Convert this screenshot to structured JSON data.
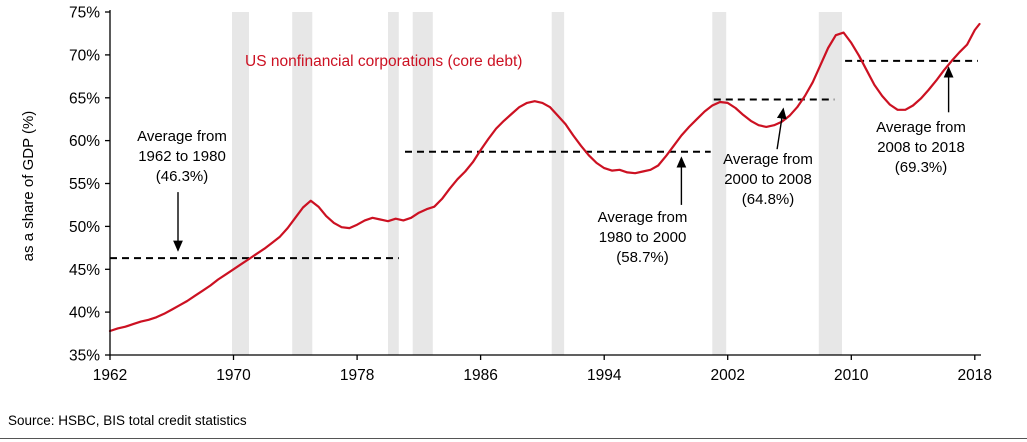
{
  "chart_data": {
    "type": "line",
    "title": "US nonfinancial corporations (core debt)",
    "xlabel": "",
    "ylabel": "as a share of GDP (%)",
    "ylim": [
      35,
      75
    ],
    "ytick_step": 5,
    "ytick_suffix": "%",
    "xlim": [
      1962,
      2018.4
    ],
    "xticks": [
      1962,
      1970,
      1978,
      1986,
      1994,
      2002,
      2010,
      2018
    ],
    "grid": false,
    "legend": "none",
    "line_color": "#cc1122",
    "band_color": "#e7e7e7",
    "series": [
      {
        "name": "US nonfinancial corporations (core debt)",
        "x": [
          1962,
          1962.5,
          1963,
          1963.5,
          1964,
          1964.5,
          1965,
          1965.5,
          1966,
          1966.5,
          1967,
          1967.5,
          1968,
          1968.5,
          1969,
          1969.5,
          1970,
          1970.5,
          1971,
          1971.5,
          1972,
          1972.5,
          1973,
          1973.5,
          1974,
          1974.5,
          1975,
          1975.5,
          1976,
          1976.5,
          1977,
          1977.5,
          1978,
          1978.5,
          1979,
          1979.5,
          1980,
          1980.5,
          1981,
          1981.5,
          1982,
          1982.5,
          1983,
          1983.5,
          1984,
          1984.5,
          1985,
          1985.5,
          1986,
          1986.5,
          1987,
          1987.5,
          1988,
          1988.5,
          1989,
          1989.5,
          1990,
          1990.5,
          1991,
          1991.5,
          1992,
          1992.5,
          1993,
          1993.5,
          1994,
          1994.5,
          1995,
          1995.5,
          1996,
          1996.5,
          1997,
          1997.5,
          1998,
          1998.5,
          1999,
          1999.5,
          2000,
          2000.5,
          2001,
          2001.5,
          2002,
          2002.5,
          2003,
          2003.5,
          2004,
          2004.5,
          2005,
          2005.5,
          2006,
          2006.5,
          2007,
          2007.5,
          2008,
          2008.5,
          2009,
          2009.5,
          2010,
          2010.5,
          2011,
          2011.5,
          2012,
          2012.5,
          2013,
          2013.5,
          2014,
          2014.5,
          2015,
          2015.5,
          2016,
          2016.5,
          2017,
          2017.5,
          2018,
          2018.3
        ],
        "values": [
          37.8,
          38.1,
          38.3,
          38.6,
          38.9,
          39.1,
          39.4,
          39.8,
          40.3,
          40.8,
          41.3,
          41.9,
          42.5,
          43.1,
          43.8,
          44.4,
          45.0,
          45.6,
          46.2,
          46.8,
          47.4,
          48.1,
          48.8,
          49.8,
          51.0,
          52.2,
          53.0,
          52.3,
          51.2,
          50.4,
          49.9,
          49.8,
          50.2,
          50.7,
          51.0,
          50.8,
          50.6,
          50.9,
          50.7,
          51.0,
          51.6,
          52.0,
          52.3,
          53.2,
          54.4,
          55.5,
          56.4,
          57.5,
          58.9,
          60.2,
          61.4,
          62.3,
          63.1,
          63.9,
          64.4,
          64.6,
          64.4,
          63.9,
          62.9,
          61.9,
          60.6,
          59.4,
          58.3,
          57.4,
          56.8,
          56.5,
          56.6,
          56.3,
          56.2,
          56.4,
          56.6,
          57.1,
          58.2,
          59.4,
          60.6,
          61.6,
          62.5,
          63.4,
          64.1,
          64.5,
          64.4,
          63.8,
          63.0,
          62.3,
          61.8,
          61.6,
          61.8,
          62.2,
          62.9,
          63.9,
          65.2,
          66.8,
          68.8,
          70.8,
          72.3,
          72.6,
          71.4,
          69.9,
          68.2,
          66.5,
          65.2,
          64.2,
          63.6,
          63.6,
          64.1,
          64.9,
          65.9,
          67.0,
          68.2,
          69.3,
          70.3,
          71.2,
          72.9,
          73.6
        ]
      }
    ],
    "recession_bands": [
      [
        1969.9,
        1971.0
      ],
      [
        1973.8,
        1975.1
      ],
      [
        1980.0,
        1980.7
      ],
      [
        1981.6,
        1982.9
      ],
      [
        1990.6,
        1991.4
      ],
      [
        2001.0,
        2001.9
      ],
      [
        2007.9,
        2009.4
      ]
    ],
    "averages": [
      {
        "label": "Average from 1962 to 1980 (46.3%)",
        "value": 46.3,
        "from": 1962.0,
        "to": 1980.7,
        "arrow": [
          1966.4,
          54.0,
          1966.4,
          47.2
        ]
      },
      {
        "label": "Average from 1980 to 2000 (58.7%)",
        "value": 58.7,
        "from": 1981.1,
        "to": 2000.9,
        "arrow": [
          1999.0,
          52.5,
          1999.0,
          58.0
        ]
      },
      {
        "label": "Average from 2000 to 2008 (64.8%)",
        "value": 64.8,
        "from": 2001.1,
        "to": 2008.9,
        "arrow": [
          2005.2,
          59.0,
          2005.6,
          63.7
        ]
      },
      {
        "label": "Average from 2008 to 2018 (69.3%)",
        "value": 69.3,
        "from": 2009.6,
        "to": 2018.2,
        "arrow": [
          2016.3,
          63.3,
          2016.3,
          68.5
        ]
      }
    ]
  },
  "annotations": {
    "avg_1962_1980": {
      "text": "Average from\n1962 to 1980\n(46.3%)"
    },
    "avg_1980_2000": {
      "text": "Average from\n1980 to 2000\n(58.7%)"
    },
    "avg_2000_2008": {
      "text": "Average from\n2000 to 2008\n(64.8%)"
    },
    "avg_2008_2018": {
      "text": "Average from\n2008 to 2018\n(69.3%)"
    }
  },
  "source": "Source: HSBC, BIS total credit statistics"
}
